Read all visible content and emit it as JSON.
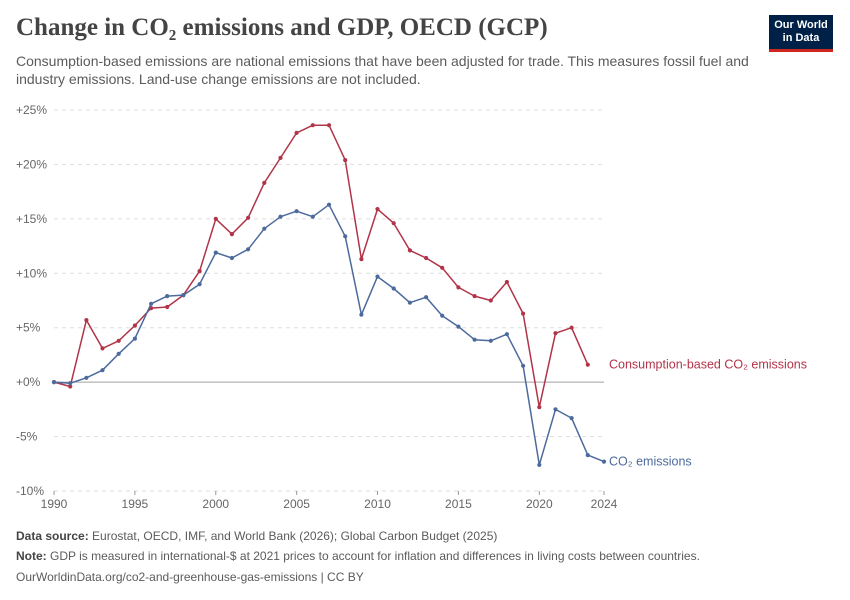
{
  "header": {
    "title": "Change in CO₂ emissions and GDP, OECD (GCP)",
    "subtitle": "Consumption-based emissions are national emissions that have been adjusted for trade. This measures fossil fuel and industry emissions. Land-use change emissions are not included."
  },
  "logo": {
    "line1": "Our World",
    "line2": "in Data"
  },
  "footer": {
    "source_label": "Data source:",
    "source_text": "Eurostat, OECD, IMF, and World Bank (2026); Global Carbon Budget (2025)",
    "note_label": "Note:",
    "note_text": "GDP is measured in international-$ at 2021 prices to account for inflation and differences in living costs between countries.",
    "url": "OurWorldinData.org/co2-and-greenhouse-gas-emissions | CC BY"
  },
  "chart_data": {
    "type": "line",
    "xlim": [
      1990,
      2024
    ],
    "ylim": [
      -10,
      25
    ],
    "y_ticks": [
      -10,
      -5,
      0,
      5,
      10,
      15,
      20,
      25
    ],
    "y_tick_labels": [
      "-10%",
      "-5%",
      "+0%",
      "+5%",
      "+10%",
      "+15%",
      "+20%",
      "+25%"
    ],
    "x_ticks": [
      1990,
      1995,
      2000,
      2005,
      2010,
      2015,
      2020,
      2024
    ],
    "grid": true,
    "colors": {
      "consumption": "#b13448",
      "co2": "#4c6a9c",
      "grid": "#dddddd",
      "zero": "#a1a1a1"
    },
    "series": [
      {
        "name": "Consumption-based CO₂ emissions",
        "color": "#b13448",
        "x": [
          1990,
          1991,
          1992,
          1993,
          1994,
          1995,
          1996,
          1997,
          1998,
          1999,
          2000,
          2001,
          2002,
          2003,
          2004,
          2005,
          2006,
          2007,
          2008,
          2009,
          2010,
          2011,
          2012,
          2013,
          2014,
          2015,
          2016,
          2017,
          2018,
          2019,
          2020,
          2021,
          2022,
          2023
        ],
        "values": [
          0,
          -0.4,
          5.7,
          3.1,
          3.8,
          5.2,
          6.8,
          6.9,
          8.0,
          10.2,
          15.0,
          13.6,
          15.1,
          18.3,
          20.6,
          22.9,
          23.6,
          23.6,
          20.4,
          11.3,
          15.9,
          14.6,
          12.1,
          11.4,
          10.5,
          8.7,
          7.9,
          7.5,
          9.2,
          6.3,
          -2.3,
          4.5,
          5.0,
          1.6
        ]
      },
      {
        "name": "CO₂ emissions",
        "color": "#4c6a9c",
        "x": [
          1990,
          1991,
          1992,
          1993,
          1994,
          1995,
          1996,
          1997,
          1998,
          1999,
          2000,
          2001,
          2002,
          2003,
          2004,
          2005,
          2006,
          2007,
          2008,
          2009,
          2010,
          2011,
          2012,
          2013,
          2014,
          2015,
          2016,
          2017,
          2018,
          2019,
          2020,
          2021,
          2022,
          2023,
          2024
        ],
        "values": [
          0,
          -0.1,
          0.4,
          1.1,
          2.6,
          4.0,
          7.2,
          7.9,
          8.0,
          9.0,
          11.9,
          11.4,
          12.2,
          14.1,
          15.2,
          15.7,
          15.2,
          16.3,
          13.4,
          6.2,
          9.7,
          8.6,
          7.3,
          7.8,
          6.1,
          5.1,
          3.9,
          3.8,
          4.4,
          1.5,
          -7.6,
          -2.5,
          -3.3,
          -6.7,
          -7.3
        ]
      }
    ]
  }
}
